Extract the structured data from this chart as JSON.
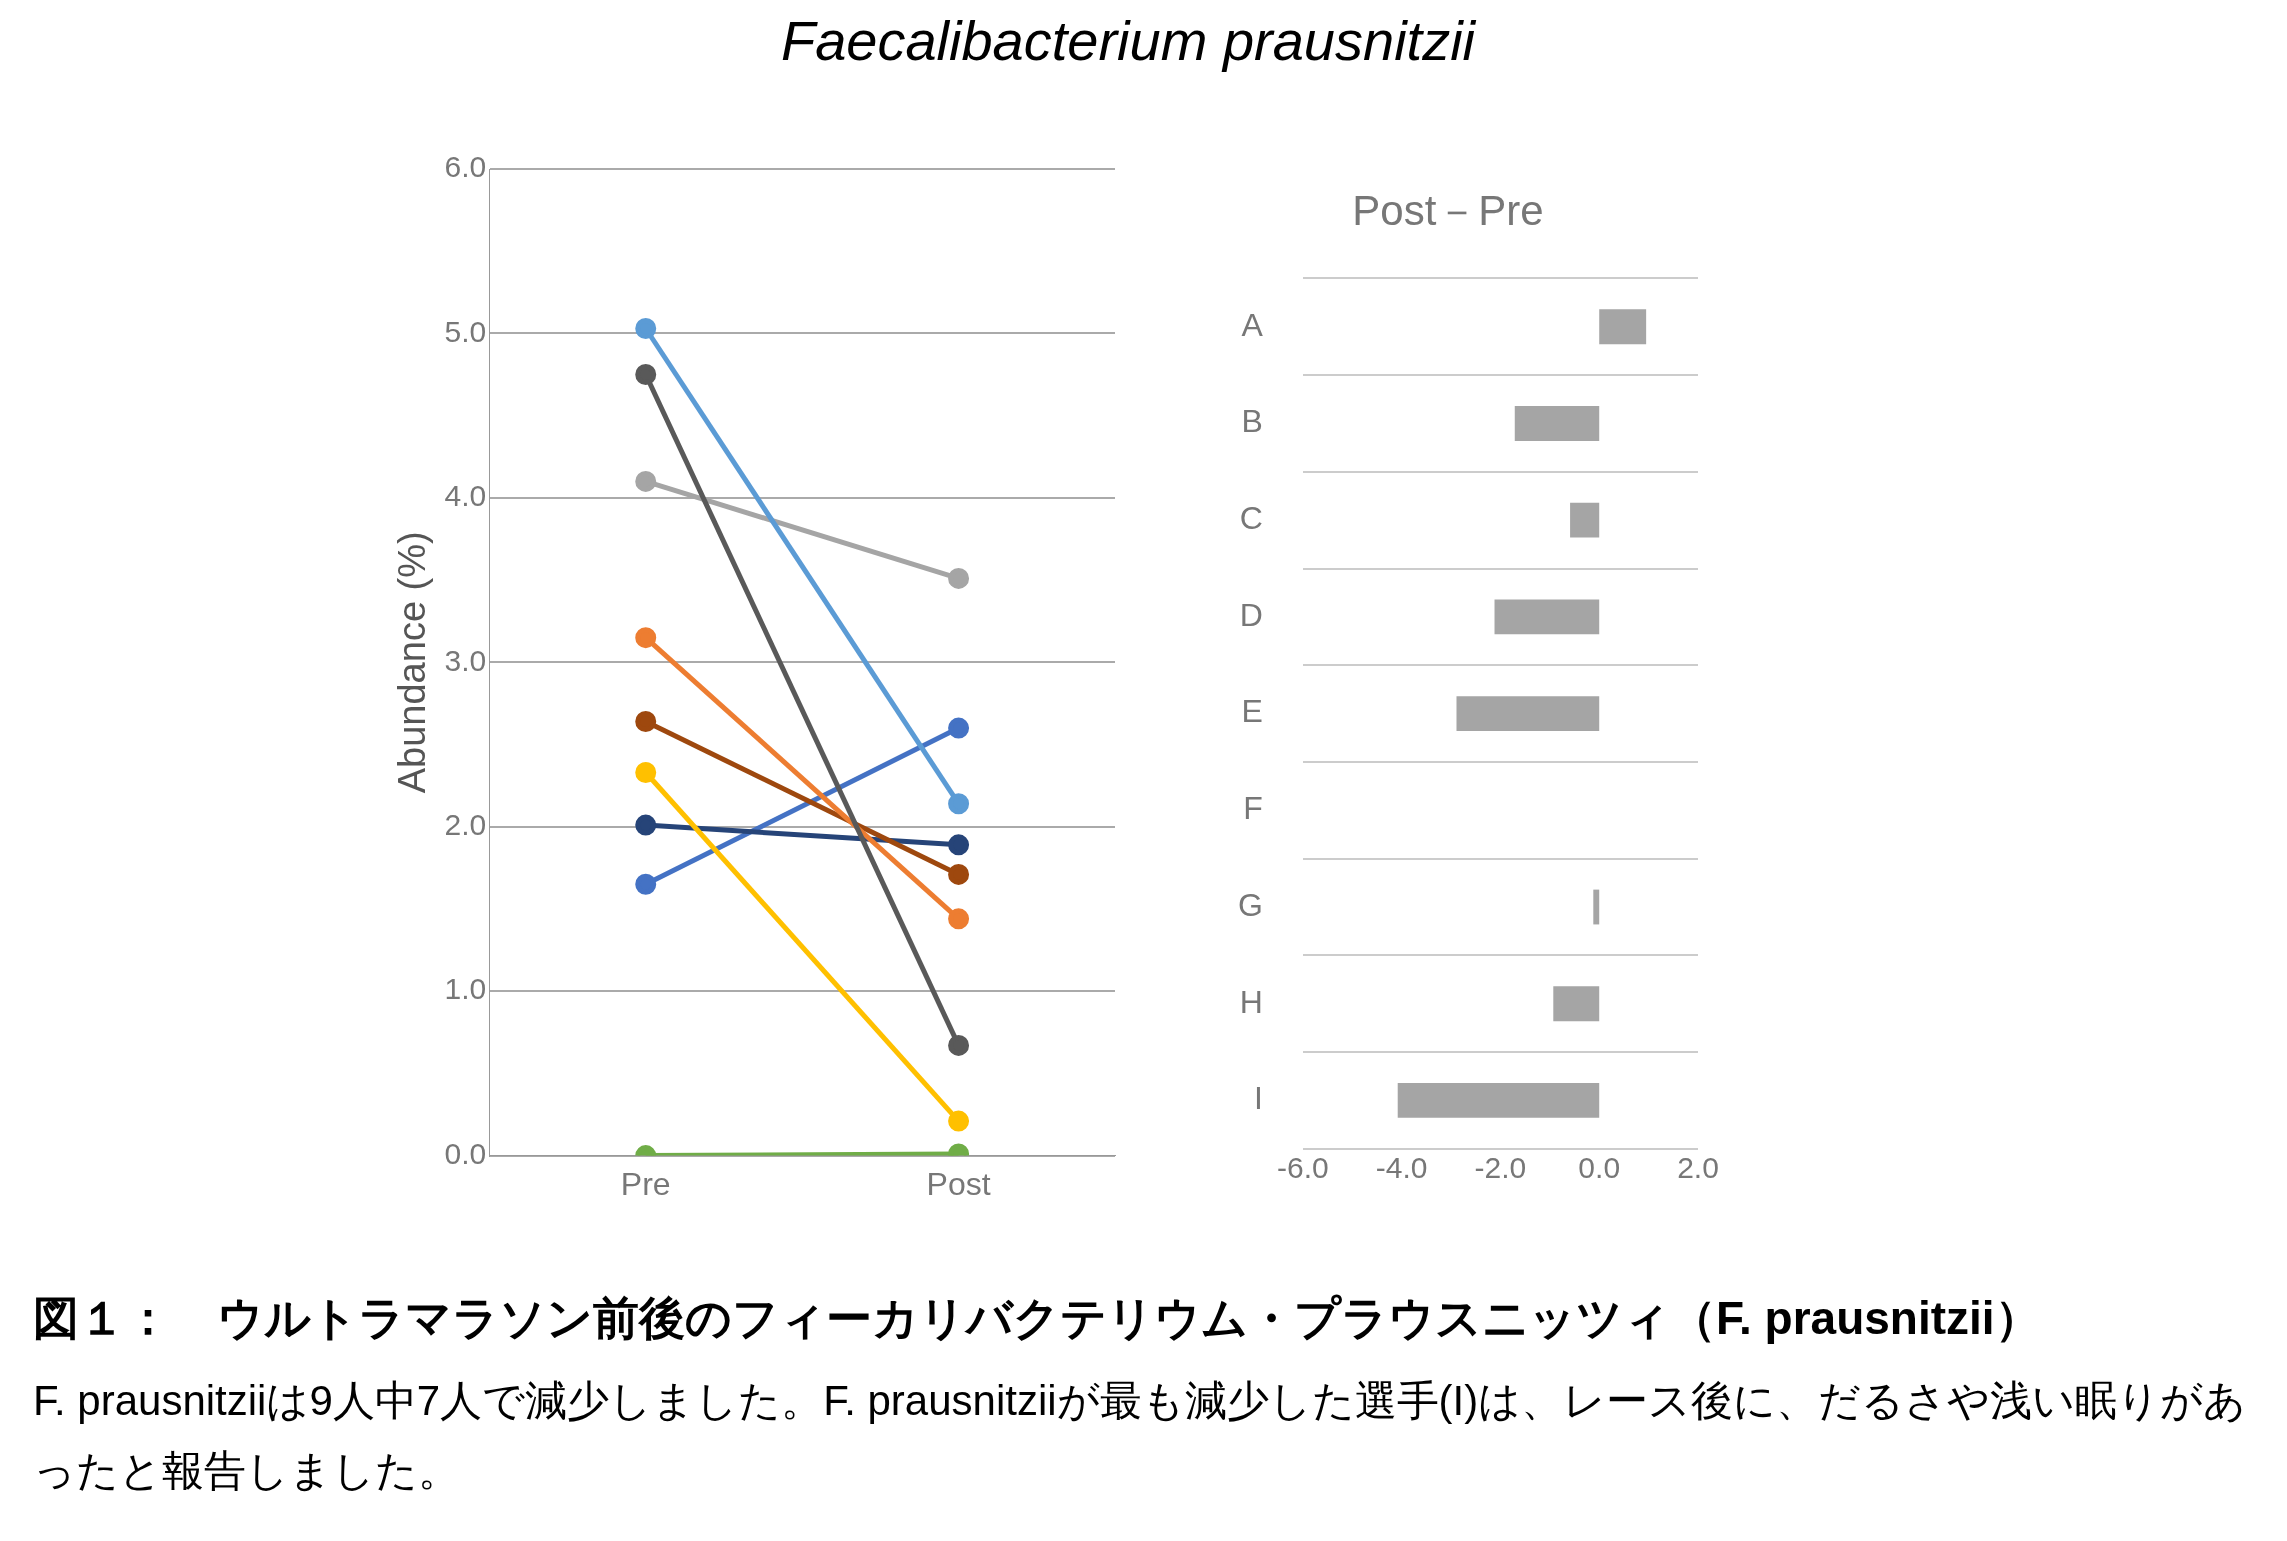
{
  "chart_data": [
    {
      "type": "line",
      "title": "Faecalibacterium prausnitzii",
      "ylabel": "Abundance (%)",
      "categories": [
        "Pre",
        "Post"
      ],
      "series": [
        {
          "color": "#5b9bd5",
          "values": [
            5.03,
            2.14
          ]
        },
        {
          "color": "#595959",
          "values": [
            4.75,
            0.67
          ]
        },
        {
          "color": "#a5a5a5",
          "values": [
            4.1,
            3.51
          ]
        },
        {
          "color": "#ed7d31",
          "values": [
            3.15,
            1.44
          ]
        },
        {
          "color": "#9e480e",
          "values": [
            2.64,
            1.71
          ]
        },
        {
          "color": "#ffc000",
          "values": [
            2.33,
            0.21
          ]
        },
        {
          "color": "#264478",
          "values": [
            2.01,
            1.89
          ]
        },
        {
          "color": "#4472c4",
          "values": [
            1.65,
            2.6
          ]
        },
        {
          "color": "#70ad47",
          "values": [
            0,
            0.01
          ]
        }
      ],
      "ylim": [
        0,
        6
      ],
      "yticks": [
        {
          "value": 0,
          "label": "0.0"
        },
        {
          "value": 1,
          "label": "1.0"
        },
        {
          "value": 2,
          "label": "2.0"
        },
        {
          "value": 3,
          "label": "3.0"
        },
        {
          "value": 4,
          "label": "4.0"
        },
        {
          "value": 5,
          "label": "5.0"
        },
        {
          "value": 6,
          "label": "6.0"
        }
      ],
      "grid": "y",
      "marker": "circle",
      "legend": false,
      "annotations": [
        "図１：　ウルトラマラソン前後のフィーカリバクテリウム・プラウスニッツィ（F. prausnitzii）",
        "F. prausnitziiは9人中7人で減少しました。F. prausnitziiが最も減少した選手(I)は、レース後に、だるさや浅い眠りがあったと報告しました。"
      ]
    },
    {
      "type": "bar",
      "orientation": "horizontal",
      "title": "Post－Pre",
      "categories": [
        "A",
        "B",
        "C",
        "D",
        "E",
        "F",
        "G",
        "H",
        "I"
      ],
      "values": [
        0.95,
        -1.71,
        -0.59,
        -2.12,
        -2.89,
        null,
        -0.12,
        -0.93,
        -4.08
      ],
      "color": "#a5a5a5",
      "xlim": [
        -6,
        2
      ],
      "xticks": [
        {
          "value": -6,
          "label": "-6.0"
        },
        {
          "value": -4,
          "label": "-4.0"
        },
        {
          "value": -2,
          "label": "-2.0"
        },
        {
          "value": 0,
          "label": "0.0"
        },
        {
          "value": 2,
          "label": "2.0"
        }
      ],
      "grid": "y",
      "legend": false
    }
  ]
}
